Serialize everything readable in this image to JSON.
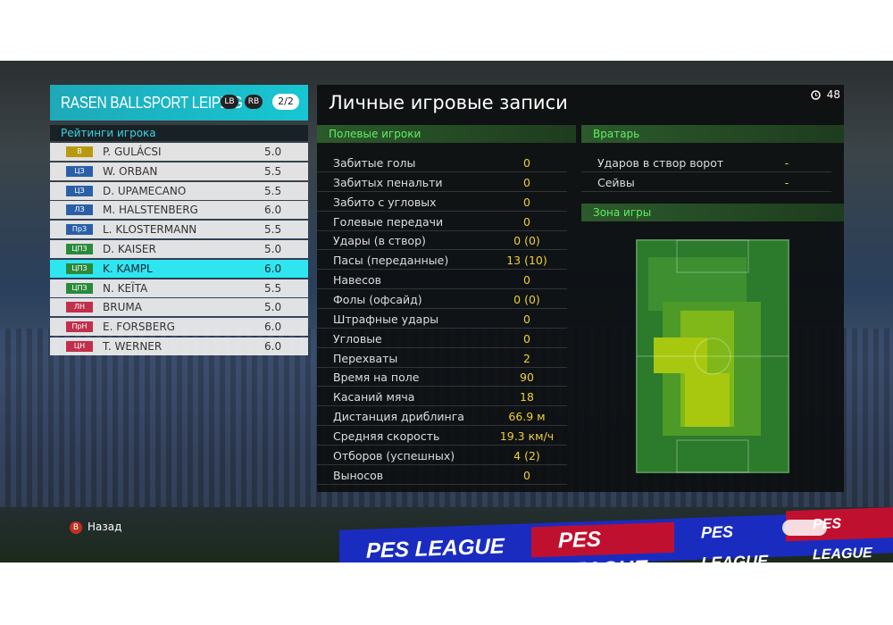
{
  "header": {
    "team": "RASEN BALLSPORT LEIPZIG",
    "badges": [
      "LB",
      "RB"
    ],
    "page": "2/2"
  },
  "ratings": {
    "title": "Рейтинги игрока",
    "players": [
      {
        "position": "В",
        "badge_color": "#b89a10",
        "name": "P. GULÁCSI",
        "rating": "5.0"
      },
      {
        "position": "ЦЗ",
        "badge_color": "#2a5fa8",
        "name": "W. ORBAN",
        "rating": "5.5"
      },
      {
        "position": "ЦЗ",
        "badge_color": "#2a5fa8",
        "name": "D. UPAMECANO",
        "rating": "5.5"
      },
      {
        "position": "ЛЗ",
        "badge_color": "#2a5fa8",
        "name": "M. HALSTENBERG",
        "rating": "6.0"
      },
      {
        "position": "ПрЗ",
        "badge_color": "#2a5fa8",
        "name": "L. KLOSTERMANN",
        "rating": "5.5"
      },
      {
        "position": "ЦПЗ",
        "badge_color": "#2a8a3a",
        "name": "D. KAISER",
        "rating": "5.0"
      },
      {
        "position": "ЦПЗ",
        "badge_color": "#2a8a3a",
        "name": "K. KAMPL",
        "rating": "6.0"
      },
      {
        "position": "ЦПЗ",
        "badge_color": "#2a8a3a",
        "name": "N. KEÏTA",
        "rating": "5.5"
      },
      {
        "position": "ЛН",
        "badge_color": "#c0304a",
        "name": "BRUMA",
        "rating": "5.0"
      },
      {
        "position": "ПрН",
        "badge_color": "#c0304a",
        "name": "E. FORSBERG",
        "rating": "6.0"
      },
      {
        "position": "ЦН",
        "badge_color": "#c0304a",
        "name": "T. WERNER",
        "rating": "6.0"
      }
    ],
    "selected": 6
  },
  "record": {
    "title": "Личные игровые записи",
    "timer": "48",
    "field": {
      "title": "Полевые игроки",
      "rows": [
        [
          "Забитые голы",
          "0"
        ],
        [
          "Забитых пенальти",
          "0"
        ],
        [
          "Забито с угловых",
          "0"
        ],
        [
          "Голевые передачи",
          "0"
        ],
        [
          "Удары (в створ)",
          "0 (0)"
        ],
        [
          "Пасы (переданные)",
          "13 (10)"
        ],
        [
          "Навесов",
          "0"
        ],
        [
          "Фолы (офсайд)",
          "0 (0)"
        ],
        [
          "Штрафные удары",
          "0"
        ],
        [
          "Угловые",
          "0"
        ],
        [
          "Перехваты",
          "2"
        ],
        [
          "Время на поле",
          "90"
        ],
        [
          "Касаний мяча",
          "18"
        ],
        [
          "Дистанция дриблинга",
          "66.9 м"
        ],
        [
          "Средняя скорость",
          "19.3 км/ч"
        ],
        [
          "Отборов (успешных)",
          "4 (2)"
        ],
        [
          "Выносов",
          "0"
        ]
      ]
    },
    "goalkeeper": {
      "title": "Вратарь",
      "rows": [
        [
          "Ударов в створ ворот",
          "-"
        ],
        [
          "Сейвы",
          "-"
        ]
      ]
    },
    "zone": {
      "title": "Зона игры"
    }
  },
  "footer": {
    "back_key": "B",
    "back": "Назад"
  },
  "ads": "PES LEAGUE"
}
